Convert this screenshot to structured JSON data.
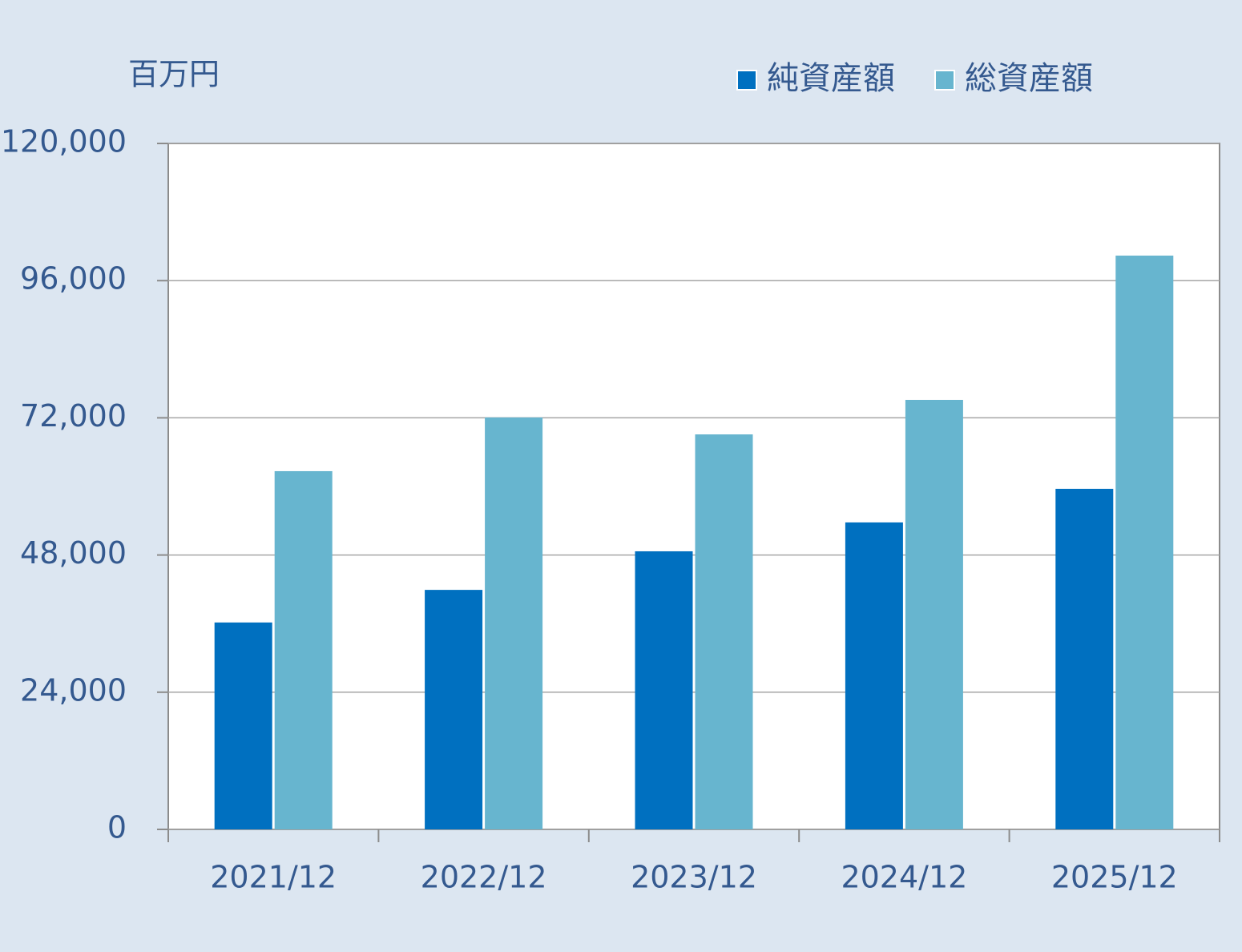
{
  "chart_data": {
    "type": "bar",
    "unit_label": "百万円",
    "categories": [
      "2021/12",
      "2022/12",
      "2023/12",
      "2024/12",
      "2025/12"
    ],
    "series": [
      {
        "name": "純資産額",
        "color": "#0070c0",
        "values": [
          36200,
          41900,
          48650,
          53700,
          59580
        ]
      },
      {
        "name": "総資産額",
        "color": "#67b5cf",
        "values": [
          62670,
          72060,
          69100,
          75140,
          100380
        ]
      }
    ],
    "ylim": [
      0,
      120000
    ],
    "yticks": [
      0,
      {
        "value": 24000,
        "label": "24,000"
      },
      {
        "value": 48000,
        "label": "48,000"
      },
      {
        "value": 72000,
        "label": "72,000"
      },
      {
        "value": 96000,
        "label": "96,000"
      },
      {
        "value": 120000,
        "label": "120,000"
      }
    ],
    "grid": true,
    "legend": "top-right"
  }
}
